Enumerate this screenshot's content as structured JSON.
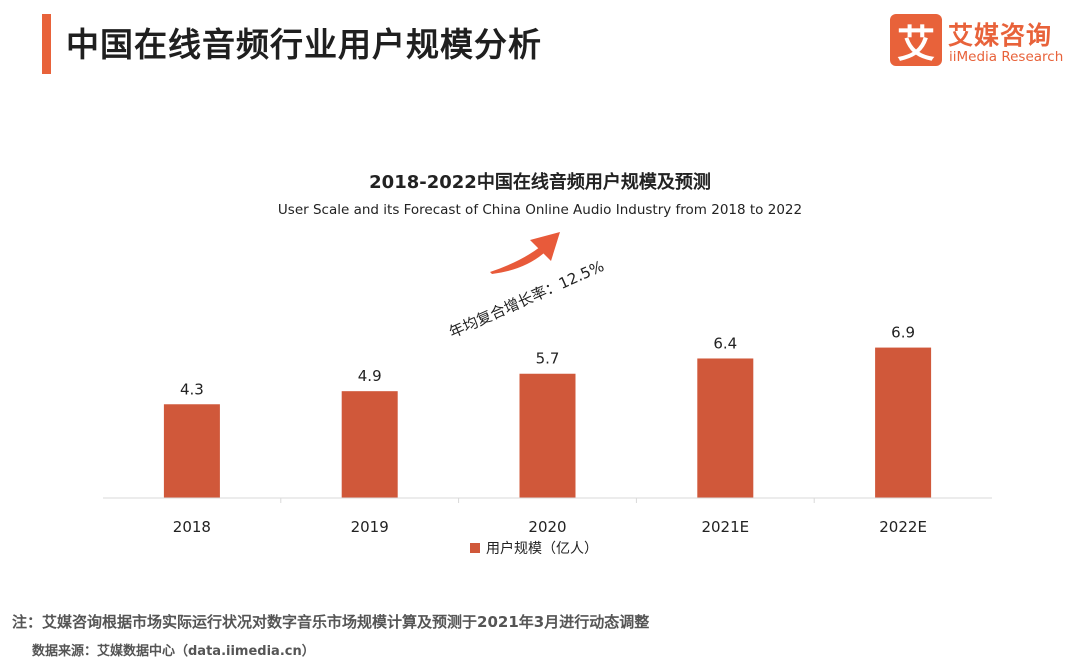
{
  "header": {
    "title": "中国在线音频行业用户规模分析",
    "logo": {
      "mark": "艾",
      "cn": "艾媒咨询",
      "en": "iiMedia Research"
    }
  },
  "colors": {
    "accent": "#e8623a",
    "bar": "#d0583a",
    "axis": "#d9d9d9"
  },
  "chart_data": {
    "type": "bar",
    "title": "2018-2022中国在线音频用户规模及预测",
    "subtitle": "User Scale and its Forecast of China Online Audio Industry from 2018 to 2022",
    "categories": [
      "2018",
      "2019",
      "2020",
      "2021E",
      "2022E"
    ],
    "series": [
      {
        "name": "用户规模（亿人）",
        "values": [
          4.3,
          4.9,
          5.7,
          6.4,
          6.9
        ]
      }
    ],
    "data_labels": [
      "4.3",
      "4.9",
      "5.7",
      "6.4",
      "6.9"
    ],
    "annotation": "年均复合增长率：12.5%",
    "xlabel": "",
    "ylabel": "",
    "ylim": [
      0,
      8
    ],
    "grid": false,
    "legend": "bottom"
  },
  "footer": {
    "note": "注：艾媒咨询根据市场实际运行状况对数字音乐市场规模计算及预测于2021年3月进行动态调整",
    "source": "数据来源：艾媒数据中心（data.iimedia.cn）"
  }
}
